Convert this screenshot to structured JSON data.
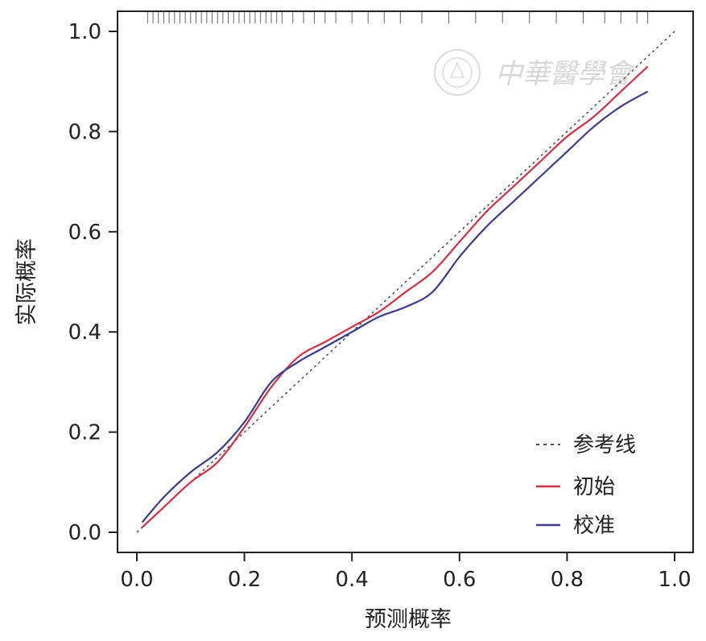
{
  "chart_data": {
    "type": "line",
    "xlabel": "预测概率",
    "ylabel": "实际概率",
    "xlim": [
      0.0,
      1.0
    ],
    "ylim": [
      0.0,
      1.0
    ],
    "xticks": [
      "0.0",
      "0.2",
      "0.4",
      "0.6",
      "0.8",
      "1.0"
    ],
    "yticks": [
      "0.0",
      "0.2",
      "0.4",
      "0.6",
      "0.8",
      "1.0"
    ],
    "grid": false,
    "legend_position": "bottom-right",
    "series": [
      {
        "name": "参考线",
        "style": "dashed",
        "color": "#555555",
        "x": [
          0.0,
          1.0
        ],
        "y": [
          0.0,
          1.0
        ]
      },
      {
        "name": "初始",
        "style": "solid",
        "color": "#d62f45",
        "x": [
          0.01,
          0.05,
          0.1,
          0.15,
          0.2,
          0.25,
          0.3,
          0.35,
          0.4,
          0.45,
          0.5,
          0.55,
          0.6,
          0.65,
          0.7,
          0.75,
          0.8,
          0.85,
          0.9,
          0.95
        ],
        "y": [
          0.01,
          0.05,
          0.1,
          0.14,
          0.21,
          0.29,
          0.35,
          0.38,
          0.41,
          0.44,
          0.48,
          0.52,
          0.58,
          0.64,
          0.69,
          0.74,
          0.79,
          0.83,
          0.88,
          0.93
        ]
      },
      {
        "name": "校准",
        "style": "solid",
        "color": "#3a3d8f",
        "x": [
          0.01,
          0.05,
          0.1,
          0.15,
          0.2,
          0.25,
          0.3,
          0.35,
          0.4,
          0.45,
          0.5,
          0.55,
          0.6,
          0.65,
          0.7,
          0.75,
          0.8,
          0.85,
          0.9,
          0.95
        ],
        "y": [
          0.02,
          0.07,
          0.12,
          0.16,
          0.22,
          0.3,
          0.34,
          0.37,
          0.4,
          0.43,
          0.45,
          0.48,
          0.55,
          0.61,
          0.66,
          0.71,
          0.76,
          0.81,
          0.85,
          0.88
        ]
      }
    ],
    "rug_x": [
      0.02,
      0.03,
      0.04,
      0.05,
      0.06,
      0.07,
      0.08,
      0.09,
      0.1,
      0.11,
      0.12,
      0.13,
      0.14,
      0.15,
      0.16,
      0.17,
      0.18,
      0.19,
      0.2,
      0.21,
      0.22,
      0.23,
      0.24,
      0.25,
      0.26,
      0.27,
      0.29,
      0.31,
      0.33,
      0.35,
      0.37,
      0.4,
      0.43,
      0.46,
      0.49,
      0.53,
      0.58,
      0.63,
      0.68,
      0.73,
      0.78,
      0.83,
      0.87,
      0.9,
      0.93,
      0.95
    ]
  },
  "watermark": {
    "text": "中華醫學會",
    "seal_icon": "seal-icon"
  }
}
